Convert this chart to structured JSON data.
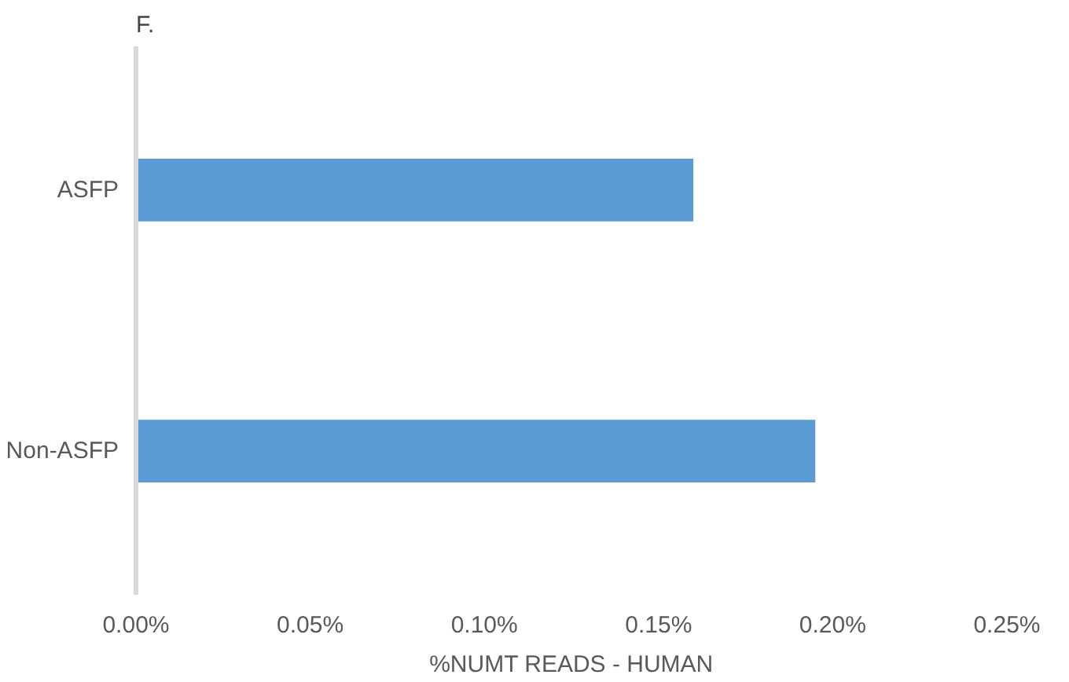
{
  "chart_data": {
    "type": "bar",
    "orientation": "horizontal",
    "title": "F.",
    "categories": [
      "ASFP",
      "Non-ASFP"
    ],
    "values": [
      0.16,
      0.195
    ],
    "color": "#5b9bd5",
    "xlabel": "%NUMT READS - HUMAN",
    "xlim": [
      0,
      0.25
    ],
    "xticks": [
      {
        "value": 0,
        "label": "0.00%"
      },
      {
        "value": 0.05,
        "label": "0.05%"
      },
      {
        "value": 0.1,
        "label": "0.10%"
      },
      {
        "value": 0.15,
        "label": "0.15%"
      },
      {
        "value": 0.2,
        "label": "0.20%"
      },
      {
        "value": 0.25,
        "label": "0.25%"
      }
    ],
    "grid": false
  }
}
